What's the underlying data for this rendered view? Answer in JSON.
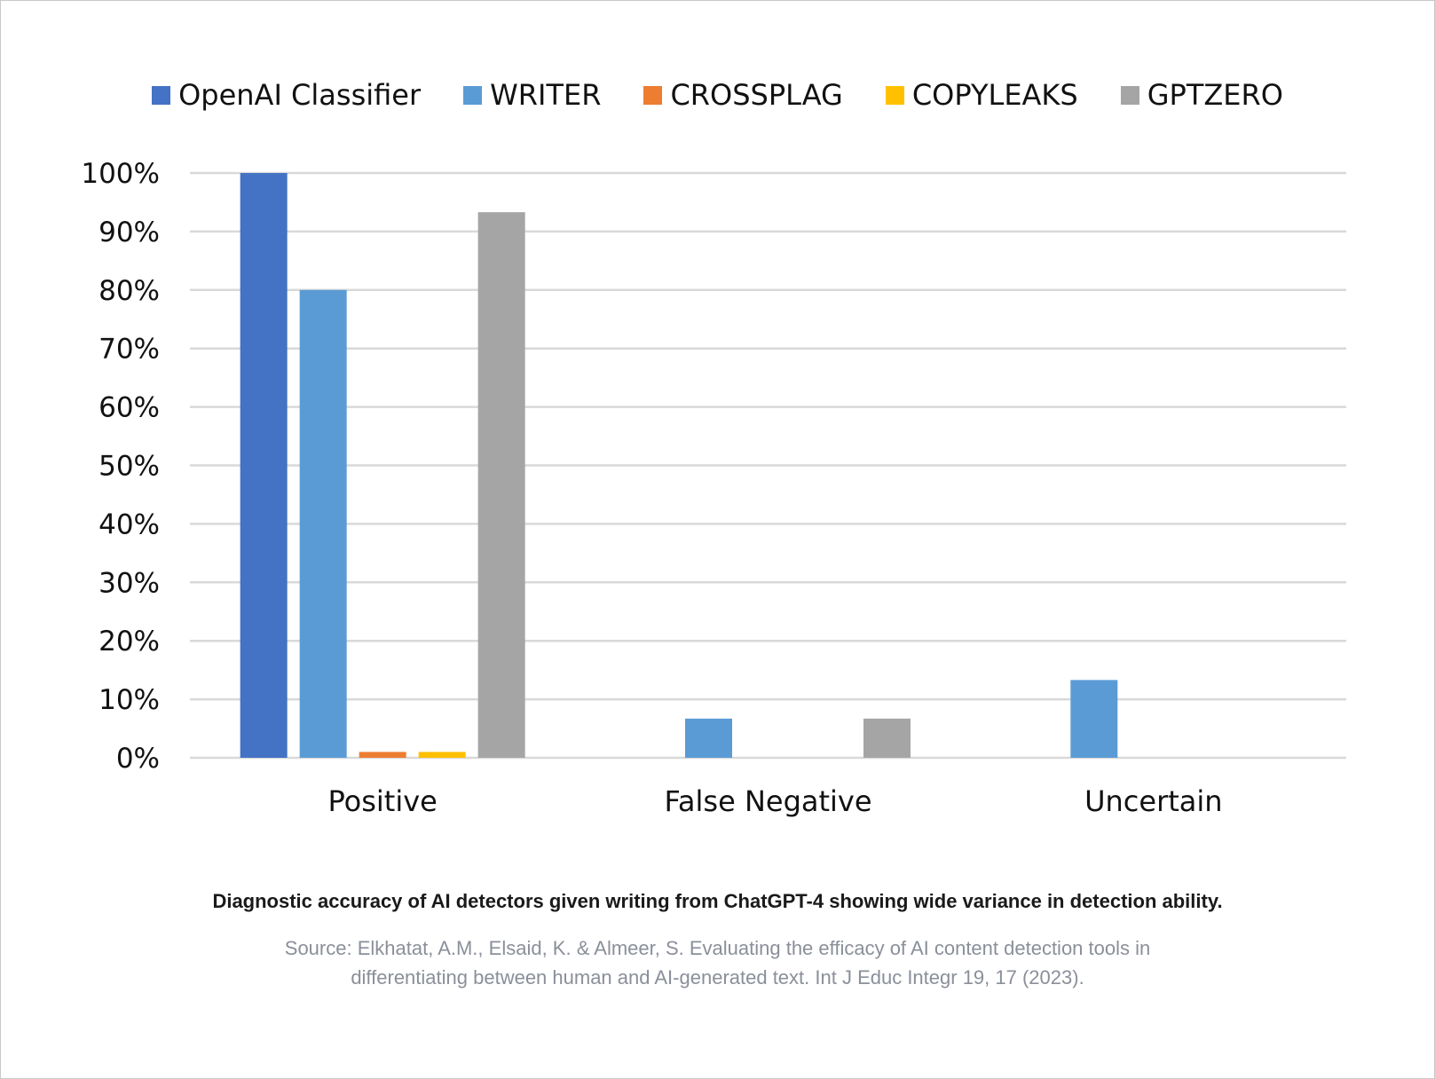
{
  "chart_data": {
    "type": "bar",
    "categories": [
      "Positive",
      "False Negative",
      "Uncertain"
    ],
    "series": [
      {
        "name": "OpenAI Classifier",
        "color": "#4472c4",
        "values": [
          100,
          0,
          0
        ]
      },
      {
        "name": "WRITER",
        "color": "#5b9bd5",
        "values": [
          80,
          6.7,
          13.3
        ]
      },
      {
        "name": "CROSSPLAG",
        "color": "#ed7d31",
        "values": [
          1,
          0,
          0
        ]
      },
      {
        "name": "COPYLEAKS",
        "color": "#ffc000",
        "values": [
          1,
          0,
          0
        ]
      },
      {
        "name": "GPTZERO",
        "color": "#a5a5a5",
        "values": [
          93.3,
          6.7,
          0
        ]
      }
    ],
    "yticks": [
      "0%",
      "10%",
      "20%",
      "30%",
      "40%",
      "50%",
      "60%",
      "70%",
      "80%",
      "90%",
      "100%"
    ],
    "ylim": [
      0,
      100
    ],
    "grid": true,
    "legend_position": "top"
  },
  "caption": "Diagnostic accuracy of AI detectors given writing from ChatGPT-4 showing wide variance in detection ability.",
  "source_lines": [
    "Source: Elkhatat, A.M., Elsaid, K. & Almeer, S. Evaluating the efficacy of AI content detection tools in",
    "differentiating between human and AI-generated text. Int J Educ Integr 19, 17 (2023)."
  ]
}
